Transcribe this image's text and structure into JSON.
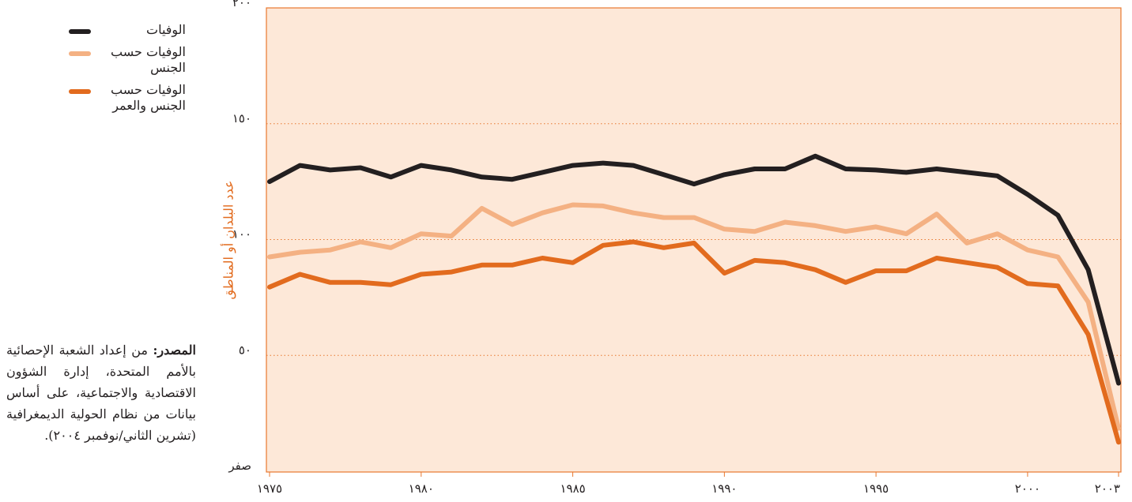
{
  "chart_data": {
    "type": "line",
    "y_label": "عدد البلدان أو المناطق",
    "x": [
      1975,
      1976,
      1977,
      1978,
      1979,
      1980,
      1981,
      1982,
      1983,
      1984,
      1985,
      1986,
      1987,
      1988,
      1989,
      1990,
      1991,
      1992,
      1993,
      1994,
      1995,
      1996,
      1997,
      1998,
      1999,
      2000,
      2001,
      2002,
      2003
    ],
    "series": [
      {
        "name": "الوفيات",
        "color": "#231f20",
        "values": [
          125,
          132,
          130,
          131,
          127,
          132,
          130,
          127,
          126,
          129,
          132,
          133,
          132,
          128,
          124,
          128,
          130.5,
          130.5,
          136,
          130.5,
          130,
          129,
          130.5,
          129,
          127.5,
          119.5,
          110.5,
          87,
          38
        ]
      },
      {
        "name": "الوفيات حسب الجنس",
        "color": "#f4b183",
        "values": [
          92.5,
          94.5,
          95.5,
          99,
          96.5,
          102.5,
          101.5,
          113.5,
          106.5,
          111.5,
          115,
          114.5,
          111.5,
          109.5,
          109.5,
          104.5,
          103.5,
          107.5,
          106,
          103.5,
          105.5,
          102.5,
          111,
          98.5,
          102.5,
          95.5,
          92.5,
          73,
          18.5
        ]
      },
      {
        "name": "الوفيات حسب الجنس والعمر",
        "color": "#e26b1e",
        "values": [
          79.5,
          85,
          81.5,
          81.5,
          80.5,
          85,
          86,
          89,
          89,
          92,
          90,
          97.5,
          99,
          96.5,
          98.5,
          85.5,
          91,
          90,
          87,
          81.5,
          86.5,
          86.5,
          92,
          90,
          88,
          81,
          80,
          59,
          12.5
        ]
      }
    ],
    "xlim": [
      1975,
      2003
    ],
    "xticks": [
      {
        "value": 1975,
        "label": "١٩٧٥"
      },
      {
        "value": 1980,
        "label": "١٩٨٠"
      },
      {
        "value": 1985,
        "label": "١٩٨٥"
      },
      {
        "value": 1990,
        "label": "١٩٩٠"
      },
      {
        "value": 1995,
        "label": "١٩٩٥"
      },
      {
        "value": 2000,
        "label": "٢٠٠٠"
      },
      {
        "value": 2003,
        "label": "٢٠٠٣"
      }
    ],
    "ylim": [
      0,
      200
    ],
    "yticks": [
      {
        "value": 0,
        "label": "صفر"
      },
      {
        "value": 50,
        "label": "٥٠"
      },
      {
        "value": 100,
        "label": "١٠٠"
      },
      {
        "value": 150,
        "label": "١٥٠"
      },
      {
        "value": 200,
        "label": "٢٠٠"
      }
    ],
    "grid": true,
    "legend": "top-left"
  },
  "note": {
    "label": "المصدر:",
    "text": "من إعداد الشعبة الإحصائية بالأمم المتحدة، إدارة الشؤون الاقتصادية والاجتماعية، على أساس بيانات من نظام الحولية الديمغرافية (تشرين الثاني/نوفمبر ٢٠٠٤)."
  }
}
